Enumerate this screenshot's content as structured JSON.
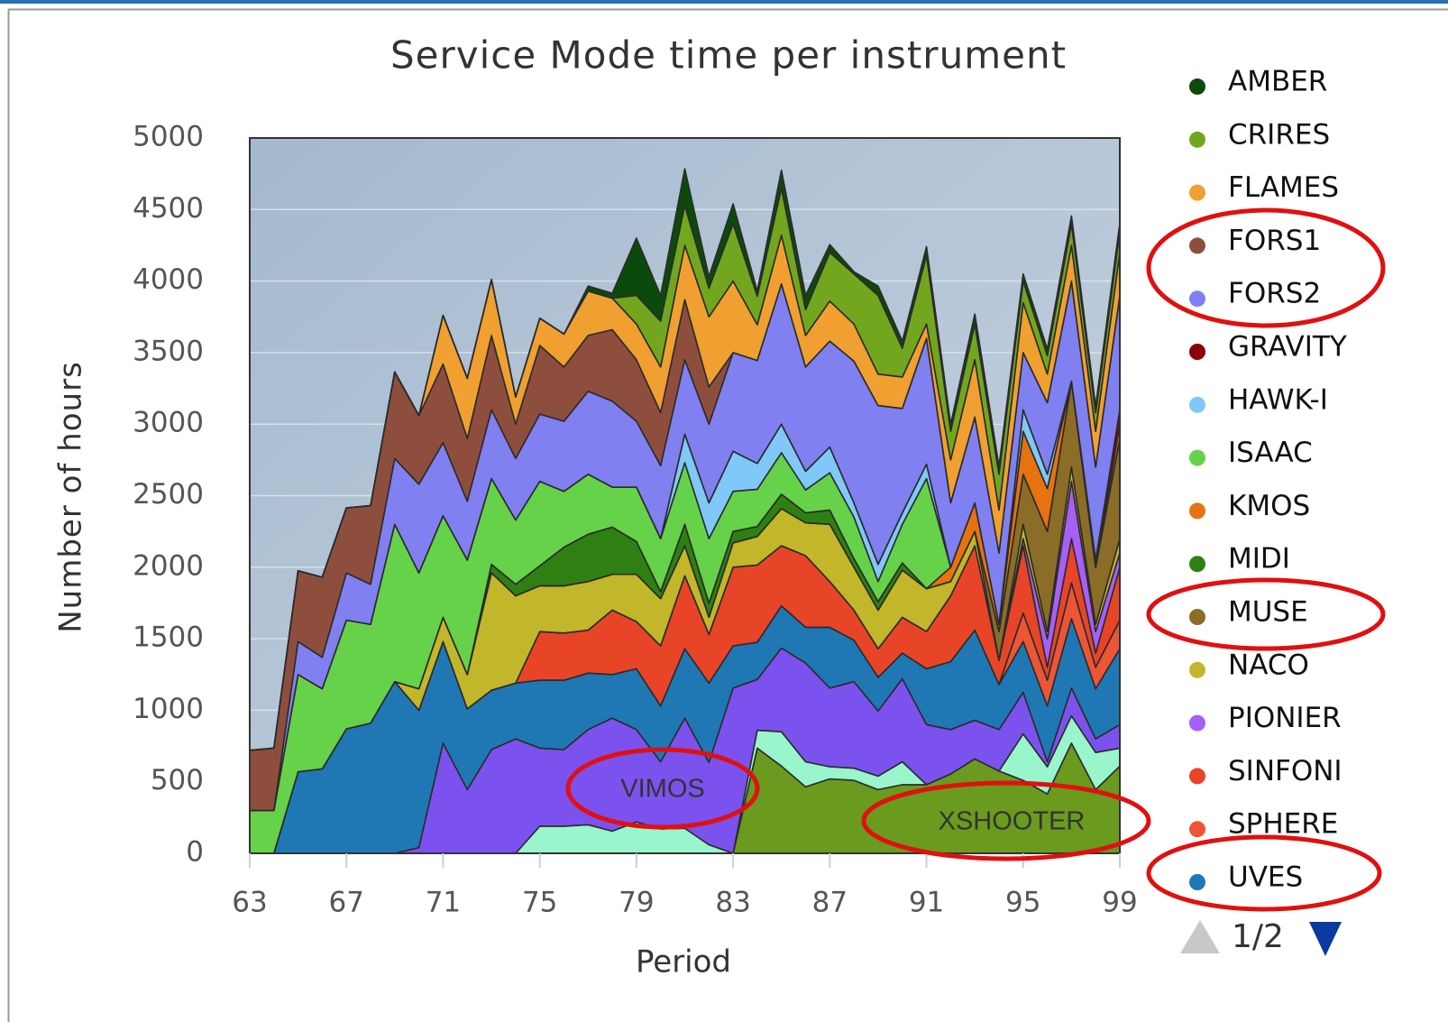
{
  "chart_data": {
    "type": "stacked-area",
    "title": "Service Mode time per instrument",
    "x_label": "Period",
    "y_label": "Number of hours",
    "x": [
      63,
      64,
      65,
      66,
      67,
      68,
      69,
      70,
      71,
      72,
      73,
      74,
      75,
      76,
      77,
      78,
      79,
      80,
      81,
      82,
      83,
      84,
      85,
      86,
      87,
      88,
      89,
      90,
      91,
      92,
      93,
      94,
      95,
      96,
      97,
      98,
      99
    ],
    "xlim": [
      63,
      99
    ],
    "xticks": [
      63,
      67,
      71,
      75,
      79,
      83,
      87,
      91,
      95,
      99
    ],
    "ylim": [
      0,
      5000
    ],
    "yticks": [
      0,
      500,
      1000,
      1500,
      2000,
      2500,
      3000,
      3500,
      4000,
      4500,
      5000
    ],
    "grid": true,
    "legend_position": "right",
    "legend_page": "1/2",
    "series": [
      {
        "name": "AMBER",
        "color": "#0b4a0b",
        "values": [
          0,
          0,
          0,
          0,
          0,
          0,
          0,
          0,
          0,
          0,
          0,
          0,
          0,
          0,
          35,
          35,
          400,
          180,
          255,
          80,
          140,
          35,
          125,
          100,
          55,
          15,
          65,
          50,
          60,
          50,
          70,
          55,
          50,
          45,
          55,
          45,
          55
        ]
      },
      {
        "name": "CRIRES",
        "color": "#72a61f",
        "values": [
          0,
          0,
          0,
          0,
          0,
          0,
          0,
          0,
          0,
          0,
          0,
          0,
          0,
          0,
          0,
          0,
          200,
          320,
          280,
          200,
          400,
          200,
          330,
          180,
          340,
          350,
          550,
          200,
          480,
          200,
          250,
          250,
          150,
          130,
          150,
          130,
          150
        ]
      },
      {
        "name": "FLAMES",
        "color": "#f0a030",
        "values": [
          0,
          0,
          0,
          0,
          0,
          0,
          0,
          0,
          340,
          420,
          390,
          190,
          190,
          230,
          310,
          220,
          250,
          320,
          380,
          490,
          500,
          250,
          340,
          220,
          280,
          260,
          220,
          220,
          100,
          300,
          400,
          300,
          350,
          200,
          250,
          250,
          300
        ]
      },
      {
        "name": "FORS1",
        "color": "#8e4e3e",
        "values": [
          420,
          435,
          495,
          560,
          455,
          550,
          605,
          480,
          550,
          440,
          520,
          240,
          480,
          380,
          390,
          500,
          430,
          370,
          420,
          260,
          0,
          0,
          0,
          0,
          0,
          0,
          0,
          0,
          0,
          0,
          0,
          0,
          0,
          0,
          0,
          0,
          0
        ]
      },
      {
        "name": "FORS2",
        "color": "#8080f0",
        "values": [
          0,
          0,
          230,
          220,
          330,
          280,
          460,
          620,
          510,
          410,
          480,
          430,
          470,
          490,
          580,
          600,
          460,
          510,
          520,
          550,
          690,
          720,
          980,
          730,
          740,
          990,
          1110,
          730,
          880,
          450,
          600,
          500,
          400,
          500,
          700,
          650,
          800
        ]
      },
      {
        "name": "GRAVITY",
        "color": "#8b0000",
        "values": [
          0,
          0,
          0,
          0,
          0,
          0,
          0,
          0,
          0,
          0,
          0,
          0,
          0,
          0,
          0,
          0,
          0,
          0,
          0,
          0,
          0,
          0,
          0,
          0,
          0,
          0,
          0,
          0,
          0,
          0,
          0,
          0,
          0,
          0,
          0,
          50,
          100
        ]
      },
      {
        "name": "HAWK-I",
        "color": "#80c8f8",
        "values": [
          0,
          0,
          0,
          0,
          0,
          0,
          0,
          0,
          0,
          0,
          0,
          0,
          0,
          0,
          0,
          0,
          0,
          0,
          200,
          250,
          280,
          180,
          200,
          130,
          180,
          100,
          120,
          80,
          100,
          0,
          0,
          0,
          150,
          100,
          0,
          0,
          0
        ]
      },
      {
        "name": "ISAAC",
        "color": "#66d24a",
        "values": [
          300,
          300,
          680,
          560,
          760,
          690,
          1100,
          810,
          710,
          800,
          600,
          450,
          590,
          390,
          420,
          280,
          380,
          370,
          430,
          450,
          280,
          260,
          290,
          160,
          260,
          290,
          140,
          270,
          770,
          0,
          0,
          0,
          0,
          0,
          0,
          0,
          0
        ]
      },
      {
        "name": "KMOS",
        "color": "#e6730f",
        "values": [
          0,
          0,
          0,
          0,
          0,
          0,
          0,
          0,
          0,
          0,
          0,
          0,
          0,
          0,
          0,
          0,
          0,
          0,
          0,
          0,
          0,
          0,
          0,
          0,
          0,
          0,
          0,
          0,
          0,
          100,
          200,
          50,
          300,
          300,
          0,
          0,
          100
        ]
      },
      {
        "name": "MIDI",
        "color": "#2e8012",
        "values": [
          0,
          0,
          0,
          0,
          0,
          0,
          0,
          0,
          0,
          0,
          60,
          80,
          140,
          270,
          330,
          330,
          230,
          50,
          150,
          100,
          80,
          70,
          100,
          70,
          100,
          60,
          60,
          50,
          0,
          0,
          0,
          0,
          0,
          0,
          0,
          0,
          0
        ]
      },
      {
        "name": "MUSE",
        "color": "#8b6d28",
        "values": [
          0,
          0,
          0,
          0,
          0,
          0,
          0,
          0,
          0,
          0,
          0,
          0,
          0,
          0,
          0,
          0,
          0,
          0,
          0,
          0,
          0,
          0,
          0,
          0,
          0,
          0,
          0,
          0,
          0,
          0,
          0,
          200,
          350,
          700,
          600,
          400,
          700
        ]
      },
      {
        "name": "NACO",
        "color": "#c2b62a",
        "values": [
          0,
          0,
          0,
          0,
          0,
          0,
          0,
          150,
          170,
          240,
          820,
          610,
          320,
          330,
          340,
          250,
          330,
          330,
          210,
          120,
          170,
          200,
          260,
          230,
          400,
          300,
          270,
          330,
          300,
          100,
          100,
          0,
          100,
          50,
          100,
          50,
          100
        ]
      },
      {
        "name": "PIONIER",
        "color": "#a660f5",
        "values": [
          0,
          0,
          0,
          0,
          0,
          0,
          0,
          0,
          0,
          0,
          0,
          0,
          0,
          0,
          0,
          0,
          0,
          0,
          0,
          0,
          0,
          0,
          0,
          0,
          0,
          0,
          0,
          0,
          0,
          0,
          0,
          0,
          50,
          200,
          400,
          150,
          100
        ]
      },
      {
        "name": "SINFONI",
        "color": "#e84528",
        "values": [
          0,
          0,
          0,
          0,
          0,
          0,
          0,
          0,
          0,
          0,
          0,
          0,
          340,
          330,
          300,
          450,
          330,
          420,
          510,
          340,
          550,
          540,
          420,
          500,
          320,
          210,
          200,
          250,
          260,
          460,
          590,
          170,
          470,
          90,
          310,
          100,
          370
        ]
      },
      {
        "name": "SPHERE",
        "color": "#ec5535",
        "values": [
          0,
          0,
          0,
          0,
          0,
          0,
          0,
          0,
          0,
          0,
          0,
          0,
          0,
          0,
          0,
          0,
          0,
          0,
          0,
          0,
          0,
          0,
          0,
          0,
          0,
          0,
          0,
          0,
          0,
          0,
          0,
          0,
          200,
          180,
          250,
          150,
          200
        ]
      },
      {
        "name": "UVES",
        "color": "#1f78b4",
        "values": [
          0,
          0,
          570,
          590,
          870,
          910,
          1200,
          960,
          710,
          565,
          415,
          390,
          475,
          485,
          395,
          305,
          425,
          390,
          485,
          555,
          295,
          260,
          295,
          250,
          425,
          290,
          235,
          180,
          390,
          475,
          630,
          315,
          355,
          390,
          485,
          350,
          530
        ]
      },
      {
        "name": "VIMOS",
        "color": "#7b52ee",
        "values": [
          0,
          0,
          0,
          0,
          0,
          0,
          0,
          40,
          770,
          445,
          725,
          800,
          545,
          535,
          665,
          790,
          645,
          470,
          770,
          575,
          1155,
          355,
          585,
          690,
          550,
          605,
          455,
          580,
          420,
          310,
          270,
          290,
          290,
          35,
          195,
          95,
          165
        ]
      },
      {
        "color": "#98f5cc",
        "values": [
          0,
          0,
          0,
          0,
          0,
          0,
          0,
          0,
          0,
          0,
          0,
          0,
          190,
          190,
          200,
          155,
          220,
          170,
          175,
          60,
          0,
          125,
          240,
          175,
          85,
          85,
          95,
          160,
          0,
          0,
          0,
          0,
          325,
          190,
          190,
          260,
          125
        ]
      },
      {
        "name": "XSHOOTER",
        "color": "#6a9a1e",
        "values": [
          0,
          0,
          0,
          0,
          0,
          0,
          0,
          0,
          0,
          0,
          0,
          0,
          0,
          0,
          0,
          0,
          0,
          0,
          0,
          0,
          0,
          735,
          610,
          465,
          520,
          510,
          445,
          480,
          480,
          555,
          660,
          575,
          510,
          415,
          770,
          445,
          610
        ]
      }
    ]
  }
}
